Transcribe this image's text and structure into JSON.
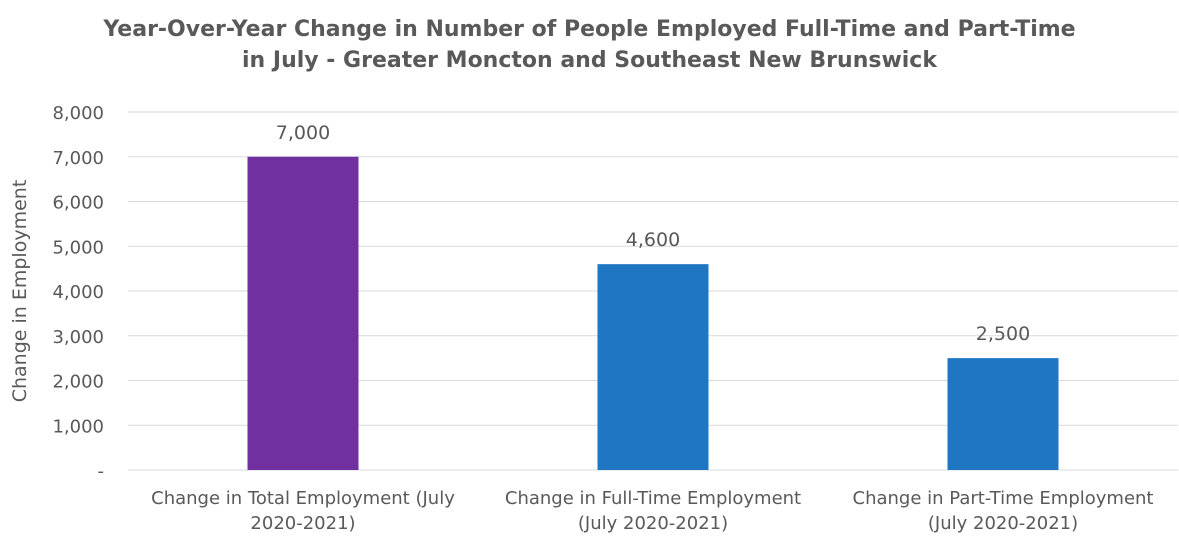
{
  "chart_data": {
    "type": "bar",
    "title_lines": [
      "Year-Over-Year Change in Number of People Employed Full-Time and Part-Time",
      "in July - Greater Moncton and Southeast New Brunswick"
    ],
    "xlabel": "",
    "ylabel": "Change in Employment",
    "ylim": [
      0,
      8000
    ],
    "yticks": [
      0,
      1000,
      2000,
      3000,
      4000,
      5000,
      6000,
      7000,
      8000
    ],
    "ytick_labels": [
      "-",
      "1,000",
      "2,000",
      "3,000",
      "4,000",
      "5,000",
      "6,000",
      "7,000",
      "8,000"
    ],
    "categories": [
      [
        "Change in Total Employment (July",
        "2020-2021)"
      ],
      [
        "Change in Full-Time Employment",
        "(July 2020-2021)"
      ],
      [
        "Change in Part-Time Employment",
        "(July 2020-2021)"
      ]
    ],
    "values": [
      7000,
      4600,
      2500
    ],
    "data_labels": [
      "7,000",
      "4,600",
      "2,500"
    ],
    "bar_colors": [
      "#7030A0",
      "#1F77C4",
      "#1F77C4"
    ],
    "gridlines": true,
    "legend": "none"
  }
}
